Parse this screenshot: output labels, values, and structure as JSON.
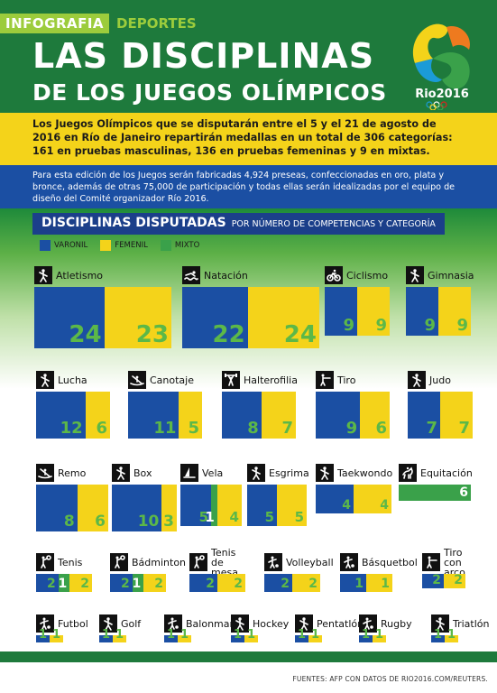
{
  "header": {
    "brand_name": "INFOGRAFIA",
    "brand_section": "DEPORTES",
    "title_line1": "LAS DISCIPLINAS",
    "title_line2": "DE LOS JUEGOS OLÍMPICOS",
    "logo_text": "Rio2016"
  },
  "intro": "Los Juegos Olímpicos que se disputarán entre el 5 y el 21 de agosto de 2016 en Río de Janeiro repartirán medallas en un total de 306 categorías: 161 en pruebas masculinas, 136 en pruebas femeninas y 9 en mixtas.",
  "details": "Para esta edición de los Juegos serán fabricadas 4,924 preseas, confeccionadas en oro, plata y bronce, además de otras 75,000 de participación y todas ellas serán idealizadas por el equipo de diseño del Comité organizador Río 2016.",
  "section": {
    "title": "DISCIPLINAS DISPUTADAS",
    "subtitle": "POR NÚMERO DE COMPETENCIAS Y CATEGORÍA"
  },
  "legend": [
    {
      "label": "VARONIL",
      "color": "#1b4fa3"
    },
    {
      "label": "FEMENIL",
      "color": "#f4d31a"
    },
    {
      "label": "MIXTO",
      "color": "#3aa14a"
    }
  ],
  "colors": {
    "varonil": "#1b4fa3",
    "femenil": "#f4d31a",
    "mixto": "#3aa14a",
    "number": "#5cb848"
  },
  "sports": [
    {
      "name": "Atletismo",
      "icon": "athletics-icon",
      "varonil": 24,
      "femenil": 23,
      "mixto": 0
    },
    {
      "name": "Natación",
      "icon": "swimming-icon",
      "varonil": 22,
      "femenil": 24,
      "mixto": 0
    },
    {
      "name": "Ciclismo",
      "icon": "cycling-icon",
      "varonil": 9,
      "femenil": 9,
      "mixto": 0
    },
    {
      "name": "Gimnasia",
      "icon": "gymnastics-icon",
      "varonil": 9,
      "femenil": 9,
      "mixto": 0
    },
    {
      "name": "Lucha",
      "icon": "wrestling-icon",
      "varonil": 12,
      "femenil": 6,
      "mixto": 0
    },
    {
      "name": "Canotaje",
      "icon": "canoeing-icon",
      "varonil": 11,
      "femenil": 5,
      "mixto": 0
    },
    {
      "name": "Halterofilia",
      "icon": "weightlifting-icon",
      "varonil": 8,
      "femenil": 7,
      "mixto": 0
    },
    {
      "name": "Tiro",
      "icon": "shooting-icon",
      "varonil": 9,
      "femenil": 6,
      "mixto": 0
    },
    {
      "name": "Judo",
      "icon": "judo-icon",
      "varonil": 7,
      "femenil": 7,
      "mixto": 0
    },
    {
      "name": "Remo",
      "icon": "rowing-icon",
      "varonil": 8,
      "femenil": 6,
      "mixto": 0
    },
    {
      "name": "Box",
      "icon": "boxing-icon",
      "varonil": 10,
      "femenil": 3,
      "mixto": 0
    },
    {
      "name": "Vela",
      "icon": "sailing-icon",
      "varonil": 5,
      "femenil": 4,
      "mixto": 1
    },
    {
      "name": "Esgrima",
      "icon": "fencing-icon",
      "varonil": 5,
      "femenil": 5,
      "mixto": 0
    },
    {
      "name": "Taekwondo",
      "icon": "taekwondo-icon",
      "varonil": 4,
      "femenil": 4,
      "mixto": 0
    },
    {
      "name": "Equitación",
      "icon": "equestrian-icon",
      "varonil": 0,
      "femenil": 0,
      "mixto": 6
    },
    {
      "name": "Tenis",
      "icon": "tennis-icon",
      "varonil": 2,
      "femenil": 2,
      "mixto": 1
    },
    {
      "name": "Bádminton",
      "icon": "badminton-icon",
      "varonil": 2,
      "femenil": 2,
      "mixto": 1
    },
    {
      "name": "Tenis de mesa",
      "icon": "table-tennis-icon",
      "varonil": 2,
      "femenil": 2,
      "mixto": 0
    },
    {
      "name": "Volleyball",
      "icon": "volleyball-icon",
      "varonil": 2,
      "femenil": 2,
      "mixto": 0
    },
    {
      "name": "Básquetbol",
      "icon": "basketball-icon",
      "varonil": 1,
      "femenil": 1,
      "mixto": 0
    },
    {
      "name": "Tiro con arco",
      "icon": "archery-icon",
      "varonil": 2,
      "femenil": 2,
      "mixto": 0
    },
    {
      "name": "Futbol",
      "icon": "football-icon",
      "varonil": 1,
      "femenil": 1,
      "mixto": 0
    },
    {
      "name": "Golf",
      "icon": "golf-icon",
      "varonil": 1,
      "femenil": 1,
      "mixto": 0
    },
    {
      "name": "Balonmano",
      "icon": "handball-icon",
      "varonil": 1,
      "femenil": 1,
      "mixto": 0
    },
    {
      "name": "Hockey",
      "icon": "hockey-icon",
      "varonil": 1,
      "femenil": 1,
      "mixto": 0
    },
    {
      "name": "Pentatlón",
      "icon": "pentathlon-icon",
      "varonil": 1,
      "femenil": 1,
      "mixto": 0
    },
    {
      "name": "Rugby",
      "icon": "rugby-icon",
      "varonil": 1,
      "femenil": 1,
      "mixto": 0
    },
    {
      "name": "Triatlón",
      "icon": "triathlon-icon",
      "varonil": 1,
      "femenil": 1,
      "mixto": 0
    }
  ],
  "source": "FUENTES: AFP CON DATOS DE RIO2016.COM/REUTERS."
}
